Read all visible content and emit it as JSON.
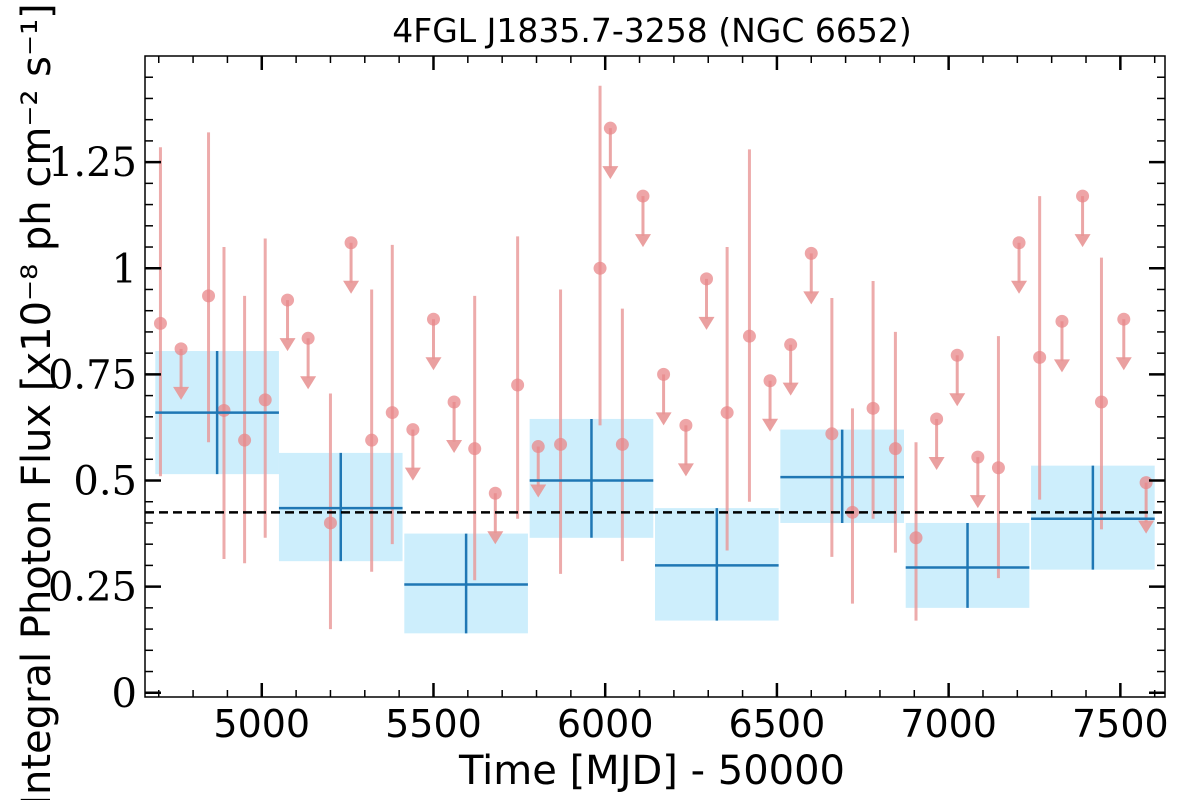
{
  "chart_data": {
    "type": "scatter",
    "title": "4FGL J1835.7-3258 (NGC 6652)",
    "xlabel": "Time [MJD] - 50000",
    "ylabel": "Integral Photon Flux [x10⁻⁸ ph cm⁻² s⁻¹]",
    "xlim": [
      4660,
      7630
    ],
    "ylim": [
      -0.01,
      1.5
    ],
    "x_ticks": [
      5000,
      5500,
      6000,
      6500,
      7000,
      7500
    ],
    "x_tick_labels": [
      "5000",
      "5500",
      "6000",
      "6500",
      "7000",
      "7500"
    ],
    "y_ticks": [
      0,
      0.25,
      0.5,
      0.75,
      1,
      1.25
    ],
    "y_tick_labels": [
      "0",
      "0.25",
      "0.5",
      "0.75",
      "1",
      "1.25"
    ],
    "grid": false,
    "legend": "none",
    "reference_line": {
      "y": 0.425,
      "style": "dashed",
      "color": "#000000"
    },
    "colors": {
      "short_bins": "#e89696",
      "short_marker": "#e8878a",
      "long_bins": "#1f77b4",
      "long_band": "#cdeefc"
    },
    "series": [
      {
        "kind": "long_bins",
        "points": [
          {
            "x": 4870,
            "xerr": 180,
            "y": 0.66,
            "ylo": 0.515,
            "yhi": 0.805
          },
          {
            "x": 5230,
            "xerr": 180,
            "y": 0.435,
            "ylo": 0.31,
            "yhi": 0.565
          },
          {
            "x": 5595,
            "xerr": 180,
            "y": 0.255,
            "ylo": 0.14,
            "yhi": 0.375
          },
          {
            "x": 5960,
            "xerr": 180,
            "y": 0.5,
            "ylo": 0.365,
            "yhi": 0.645
          },
          {
            "x": 6325,
            "xerr": 180,
            "y": 0.3,
            "ylo": 0.17,
            "yhi": 0.435
          },
          {
            "x": 6690,
            "xerr": 180,
            "y": 0.508,
            "ylo": 0.4,
            "yhi": 0.62
          },
          {
            "x": 7055,
            "xerr": 180,
            "y": 0.295,
            "ylo": 0.2,
            "yhi": 0.4
          },
          {
            "x": 7420,
            "xerr": 180,
            "y": 0.41,
            "ylo": 0.29,
            "yhi": 0.535
          }
        ]
      },
      {
        "kind": "short_bins",
        "detections": [
          {
            "x": 4705,
            "y": 0.87,
            "ylo": 0.51,
            "yhi": 1.285
          },
          {
            "x": 4845,
            "y": 0.935,
            "ylo": 0.59,
            "yhi": 1.32
          },
          {
            "x": 4890,
            "y": 0.665,
            "ylo": 0.315,
            "yhi": 1.05
          },
          {
            "x": 4950,
            "y": 0.595,
            "ylo": 0.305,
            "yhi": 0.935
          },
          {
            "x": 5010,
            "y": 0.69,
            "ylo": 0.365,
            "yhi": 1.07
          },
          {
            "x": 5200,
            "y": 0.4,
            "ylo": 0.15,
            "yhi": 0.705
          },
          {
            "x": 5320,
            "y": 0.595,
            "ylo": 0.285,
            "yhi": 0.95
          },
          {
            "x": 5380,
            "y": 0.66,
            "ylo": 0.35,
            "yhi": 1.055
          },
          {
            "x": 5620,
            "y": 0.575,
            "ylo": 0.265,
            "yhi": 0.935
          },
          {
            "x": 5745,
            "y": 0.725,
            "ylo": 0.41,
            "yhi": 1.075
          },
          {
            "x": 5870,
            "y": 0.585,
            "ylo": 0.28,
            "yhi": 0.95
          },
          {
            "x": 5985,
            "y": 1.0,
            "ylo": 0.63,
            "yhi": 1.43
          },
          {
            "x": 6050,
            "y": 0.585,
            "ylo": 0.31,
            "yhi": 0.905
          },
          {
            "x": 6355,
            "y": 0.66,
            "ylo": 0.335,
            "yhi": 1.05
          },
          {
            "x": 6420,
            "y": 0.84,
            "ylo": 0.45,
            "yhi": 1.28
          },
          {
            "x": 6660,
            "y": 0.61,
            "ylo": 0.32,
            "yhi": 0.93
          },
          {
            "x": 6720,
            "y": 0.425,
            "ylo": 0.21,
            "yhi": 0.67
          },
          {
            "x": 6780,
            "y": 0.67,
            "ylo": 0.41,
            "yhi": 0.97
          },
          {
            "x": 6845,
            "y": 0.575,
            "ylo": 0.33,
            "yhi": 0.85
          },
          {
            "x": 6905,
            "y": 0.365,
            "ylo": 0.17,
            "yhi": 0.59
          },
          {
            "x": 7145,
            "y": 0.53,
            "ylo": 0.27,
            "yhi": 0.84
          },
          {
            "x": 7265,
            "y": 0.79,
            "ylo": 0.455,
            "yhi": 1.17
          },
          {
            "x": 7445,
            "y": 0.685,
            "ylo": 0.385,
            "yhi": 1.025
          }
        ],
        "upper_limits": [
          {
            "x": 4765,
            "y": 0.81
          },
          {
            "x": 5075,
            "y": 0.925
          },
          {
            "x": 5135,
            "y": 0.835
          },
          {
            "x": 5260,
            "y": 1.06
          },
          {
            "x": 5440,
            "y": 0.62
          },
          {
            "x": 5500,
            "y": 0.88
          },
          {
            "x": 5560,
            "y": 0.685
          },
          {
            "x": 5680,
            "y": 0.47
          },
          {
            "x": 5805,
            "y": 0.58
          },
          {
            "x": 6015,
            "y": 1.33
          },
          {
            "x": 6110,
            "y": 1.17
          },
          {
            "x": 6170,
            "y": 0.75
          },
          {
            "x": 6235,
            "y": 0.63
          },
          {
            "x": 6295,
            "y": 0.975
          },
          {
            "x": 6480,
            "y": 0.735
          },
          {
            "x": 6540,
            "y": 0.82
          },
          {
            "x": 6600,
            "y": 1.035
          },
          {
            "x": 6965,
            "y": 0.645
          },
          {
            "x": 7025,
            "y": 0.795
          },
          {
            "x": 7085,
            "y": 0.555
          },
          {
            "x": 7205,
            "y": 1.06
          },
          {
            "x": 7330,
            "y": 0.875
          },
          {
            "x": 7390,
            "y": 1.17
          },
          {
            "x": 7510,
            "y": 0.88
          },
          {
            "x": 7575,
            "y": 0.495
          }
        ]
      }
    ]
  }
}
